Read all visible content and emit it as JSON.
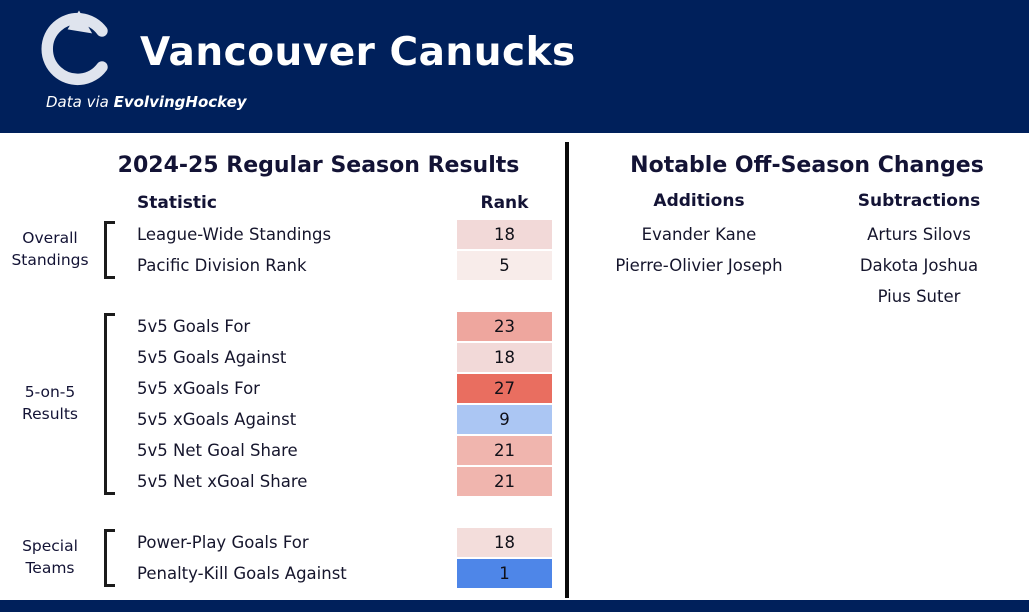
{
  "header": {
    "title": "Vancouver Canucks",
    "subtitle_prefix": "Data via ",
    "subtitle_bold": "EvolvingHockey",
    "brand_color": "#00205B"
  },
  "left_panel": {
    "title": "2024-25 Regular Season Results",
    "columns": {
      "statistic": "Statistic",
      "rank": "Rank"
    },
    "groups": [
      {
        "label_lines": [
          "Overall",
          "Standings"
        ],
        "rows": [
          {
            "statistic": "League-Wide Standings",
            "rank": "18",
            "color": "#f2d9d8"
          },
          {
            "statistic": "Pacific Division Rank",
            "rank": "5",
            "color": "#f8ecea"
          }
        ]
      },
      {
        "label_lines": [
          "5-on-5",
          "Results"
        ],
        "rows": [
          {
            "statistic": "5v5 Goals For",
            "rank": "23",
            "color": "#eea69e"
          },
          {
            "statistic": "5v5 Goals Against",
            "rank": "18",
            "color": "#f2d9d8"
          },
          {
            "statistic": "5v5 xGoals For",
            "rank": "27",
            "color": "#e96e60"
          },
          {
            "statistic": "5v5 xGoals Against",
            "rank": "9",
            "color": "#abc6f3"
          },
          {
            "statistic": "5v5 Net Goal Share",
            "rank": "21",
            "color": "#f0b5ae"
          },
          {
            "statistic": "5v5 Net xGoal Share",
            "rank": "21",
            "color": "#f0b5ae"
          }
        ]
      },
      {
        "label_lines": [
          "Special",
          "Teams"
        ],
        "rows": [
          {
            "statistic": "Power-Play Goals For",
            "rank": "18",
            "color": "#f3dddb"
          },
          {
            "statistic": "Penalty-Kill Goals Against",
            "rank": "1",
            "color": "#4e86e8"
          }
        ]
      }
    ]
  },
  "right_panel": {
    "title": "Notable Off-Season Changes",
    "additions": {
      "header": "Additions",
      "players": [
        "Evander Kane",
        "Pierre-Olivier Joseph"
      ]
    },
    "subtractions": {
      "header": "Subtractions",
      "players": [
        "Arturs Silovs",
        "Dakota Joshua",
        "Pius Suter"
      ]
    }
  },
  "chart_data": {
    "type": "table",
    "title": "2024-25 Regular Season Results",
    "columns": [
      "Statistic",
      "Rank"
    ],
    "groups": [
      {
        "group": "Overall Standings",
        "rows": [
          {
            "statistic": "League-Wide Standings",
            "rank": 18
          },
          {
            "statistic": "Pacific Division Rank",
            "rank": 5
          }
        ]
      },
      {
        "group": "5-on-5 Results",
        "rows": [
          {
            "statistic": "5v5 Goals For",
            "rank": 23
          },
          {
            "statistic": "5v5 Goals Against",
            "rank": 18
          },
          {
            "statistic": "5v5 xGoals For",
            "rank": 27
          },
          {
            "statistic": "5v5 xGoals Against",
            "rank": 9
          },
          {
            "statistic": "5v5 Net Goal Share",
            "rank": 21
          },
          {
            "statistic": "5v5 Net xGoal Share",
            "rank": 21
          }
        ]
      },
      {
        "group": "Special Teams",
        "rows": [
          {
            "statistic": "Power-Play Goals For",
            "rank": 18
          },
          {
            "statistic": "Penalty-Kill Goals Against",
            "rank": 1
          }
        ]
      }
    ],
    "legend": "cell color scale: red = worse league rank, blue = better league rank"
  }
}
